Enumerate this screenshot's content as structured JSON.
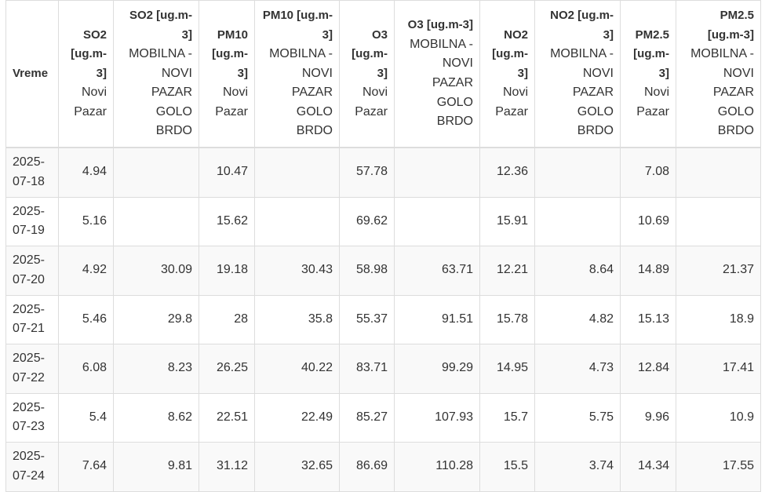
{
  "table": {
    "columns": [
      {
        "key": "vreme",
        "name": "Vreme",
        "station": ""
      },
      {
        "key": "so2_np",
        "name": "SO2 [ug.m-3]",
        "station": "Novi Pazar"
      },
      {
        "key": "so2_mob",
        "name": "SO2 [ug.m-3]",
        "station": "MOBILNA - NOVI PAZAR GOLO BRDO"
      },
      {
        "key": "pm10_np",
        "name": "PM10 [ug.m-3]",
        "station": "Novi Pazar"
      },
      {
        "key": "pm10_mob",
        "name": "PM10 [ug.m-3]",
        "station": "MOBILNA - NOVI PAZAR GOLO BRDO"
      },
      {
        "key": "o3_np",
        "name": "O3 [ug.m-3]",
        "station": "Novi Pazar"
      },
      {
        "key": "o3_mob",
        "name": "O3 [ug.m-3]",
        "station": "MOBILNA - NOVI PAZAR GOLO BRDO"
      },
      {
        "key": "no2_np",
        "name": "NO2 [ug.m-3]",
        "station": "Novi Pazar"
      },
      {
        "key": "no2_mob",
        "name": "NO2 [ug.m-3]",
        "station": "MOBILNA - NOVI PAZAR GOLO BRDO"
      },
      {
        "key": "pm25_np",
        "name": "PM2.5 [ug.m-3]",
        "station": "Novi Pazar"
      },
      {
        "key": "pm25_mob",
        "name": "PM2.5 [ug.m-3]",
        "station": "MOBILNA - NOVI PAZAR GOLO BRDO"
      }
    ],
    "rows": [
      [
        "2025-07-18",
        "4.94",
        "",
        "10.47",
        "",
        "57.78",
        "",
        "12.36",
        "",
        "7.08",
        ""
      ],
      [
        "2025-07-19",
        "5.16",
        "",
        "15.62",
        "",
        "69.62",
        "",
        "15.91",
        "",
        "10.69",
        ""
      ],
      [
        "2025-07-20",
        "4.92",
        "30.09",
        "19.18",
        "30.43",
        "58.98",
        "63.71",
        "12.21",
        "8.64",
        "14.89",
        "21.37"
      ],
      [
        "2025-07-21",
        "5.46",
        "29.8",
        "28",
        "35.8",
        "55.37",
        "91.51",
        "15.78",
        "4.82",
        "15.13",
        "18.9"
      ],
      [
        "2025-07-22",
        "6.08",
        "8.23",
        "26.25",
        "40.22",
        "83.71",
        "99.29",
        "14.95",
        "4.73",
        "12.84",
        "17.41"
      ],
      [
        "2025-07-23",
        "5.4",
        "8.62",
        "22.51",
        "22.49",
        "85.27",
        "107.93",
        "15.7",
        "5.75",
        "9.96",
        "10.9"
      ],
      [
        "2025-07-24",
        "7.64",
        "9.81",
        "31.12",
        "32.65",
        "86.69",
        "110.28",
        "15.5",
        "3.74",
        "14.34",
        "17.55"
      ]
    ]
  }
}
